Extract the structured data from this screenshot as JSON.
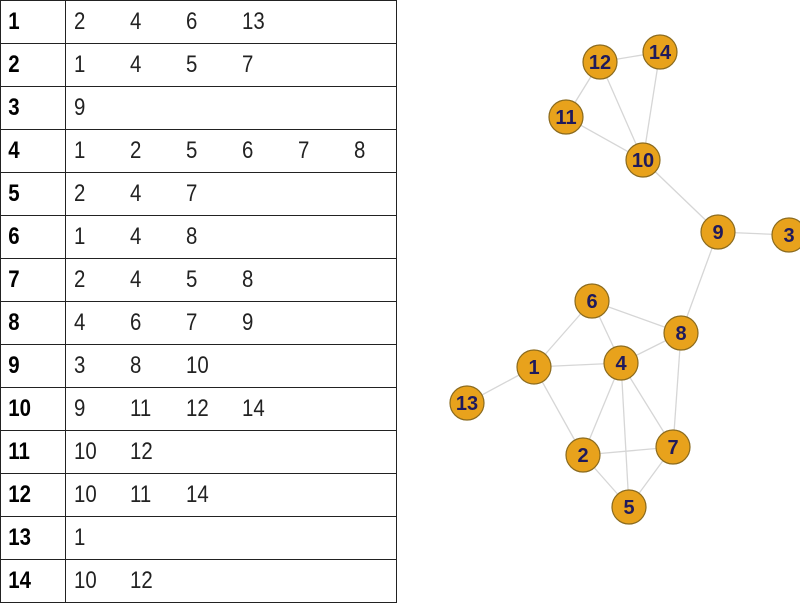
{
  "colors": {
    "node_fill": "#e8a21c",
    "node_label": "#1f1a5c",
    "edge": "#d6d6d6",
    "table_border": "#222222"
  },
  "adjacency": [
    {
      "node": "1",
      "neighbors": [
        "2",
        "4",
        "6",
        "13"
      ]
    },
    {
      "node": "2",
      "neighbors": [
        "1",
        "4",
        "5",
        "7"
      ]
    },
    {
      "node": "3",
      "neighbors": [
        "9"
      ]
    },
    {
      "node": "4",
      "neighbors": [
        "1",
        "2",
        "5",
        "6",
        "7",
        "8"
      ]
    },
    {
      "node": "5",
      "neighbors": [
        "2",
        "4",
        "7"
      ]
    },
    {
      "node": "6",
      "neighbors": [
        "1",
        "4",
        "8"
      ]
    },
    {
      "node": "7",
      "neighbors": [
        "2",
        "4",
        "5",
        "8"
      ]
    },
    {
      "node": "8",
      "neighbors": [
        "4",
        "6",
        "7",
        "9"
      ]
    },
    {
      "node": "9",
      "neighbors": [
        "3",
        "8",
        "10"
      ]
    },
    {
      "node": "10",
      "neighbors": [
        "9",
        "11",
        "12",
        "14"
      ]
    },
    {
      "node": "11",
      "neighbors": [
        "10",
        "12"
      ]
    },
    {
      "node": "12",
      "neighbors": [
        "10",
        "11",
        "14"
      ]
    },
    {
      "node": "13",
      "neighbors": [
        "1"
      ]
    },
    {
      "node": "14",
      "neighbors": [
        "10",
        "12"
      ]
    }
  ],
  "graph": {
    "nodes": [
      "1",
      "2",
      "3",
      "4",
      "5",
      "6",
      "7",
      "8",
      "9",
      "10",
      "11",
      "12",
      "13",
      "14"
    ],
    "edges": [
      [
        "1",
        "2"
      ],
      [
        "1",
        "4"
      ],
      [
        "1",
        "6"
      ],
      [
        "1",
        "13"
      ],
      [
        "2",
        "4"
      ],
      [
        "2",
        "5"
      ],
      [
        "2",
        "7"
      ],
      [
        "3",
        "9"
      ],
      [
        "4",
        "5"
      ],
      [
        "4",
        "6"
      ],
      [
        "4",
        "7"
      ],
      [
        "4",
        "8"
      ],
      [
        "5",
        "7"
      ],
      [
        "6",
        "8"
      ],
      [
        "7",
        "8"
      ],
      [
        "8",
        "9"
      ],
      [
        "9",
        "10"
      ],
      [
        "10",
        "11"
      ],
      [
        "10",
        "12"
      ],
      [
        "10",
        "14"
      ],
      [
        "11",
        "12"
      ],
      [
        "12",
        "14"
      ]
    ]
  }
}
